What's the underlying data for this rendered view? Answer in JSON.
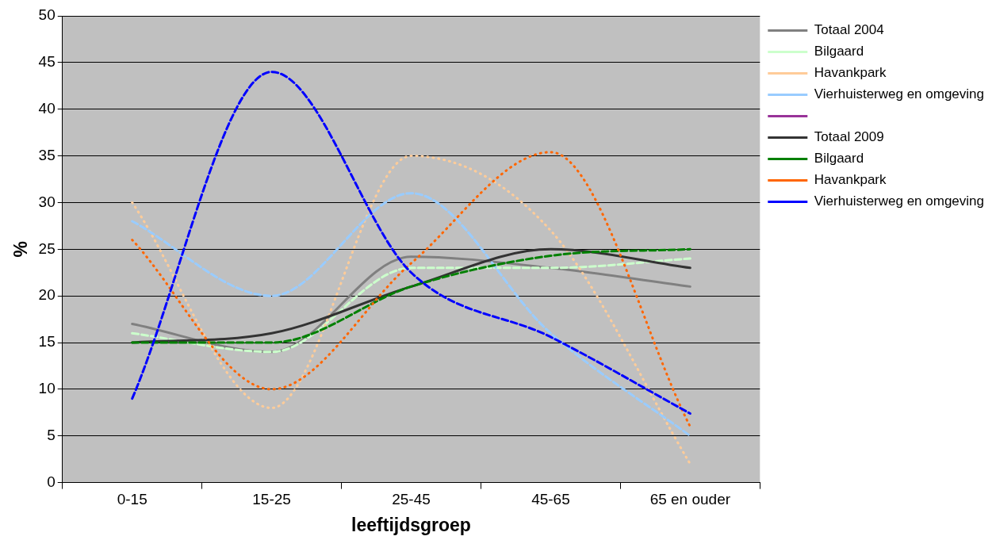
{
  "chart_data": {
    "type": "line",
    "xlabel": "leeftijdsgroep",
    "ylabel": "%",
    "categories": [
      "0-15",
      "15-25",
      "25-45",
      "45-65",
      "65 en ouder"
    ],
    "ylim": [
      0,
      50
    ],
    "yticks": [
      0,
      5,
      10,
      15,
      20,
      25,
      30,
      35,
      40,
      45,
      50
    ],
    "grid": "y",
    "legend": "top right",
    "marker": "none",
    "series": [
      {
        "name": "Totaal 2004",
        "color": "#808080",
        "line_style": "solid",
        "values": [
          17,
          14,
          24.2,
          23,
          21
        ]
      },
      {
        "name": "Bilgaard",
        "color": "#ccffcc",
        "line_style": "dashed",
        "values": [
          16,
          14,
          23,
          23,
          24
        ]
      },
      {
        "name": "Havankpark",
        "color": "#ffcc99",
        "line_style": "dotted",
        "values": [
          30,
          8,
          35,
          27,
          2
        ]
      },
      {
        "name": "Vierhuisterweg en omgeving",
        "color": "#99ccff",
        "line_style": "dashed",
        "values": [
          28,
          20,
          31,
          16,
          5
        ]
      },
      {
        "color": "#993399",
        "line_style": "solid",
        "values": [
          null,
          null,
          null,
          null,
          null
        ]
      },
      {
        "name": "Totaal 2009",
        "color": "#333333",
        "line_style": "solid",
        "values": [
          15,
          16,
          21,
          25,
          23
        ]
      },
      {
        "name": "Bilgaard",
        "color": "#008000",
        "line_style": "dashed",
        "values": [
          15,
          15,
          21,
          24.3,
          25
        ]
      },
      {
        "name": "Havankpark",
        "color": "#ff6600",
        "line_style": "dotted",
        "values": [
          26,
          10,
          23.5,
          35.4,
          6
        ]
      },
      {
        "name": "Vierhuisterweg en omgeving",
        "color": "#0000ff",
        "line_style": "dashed",
        "values": [
          9,
          44,
          22.5,
          15.6,
          7.4
        ]
      }
    ]
  }
}
